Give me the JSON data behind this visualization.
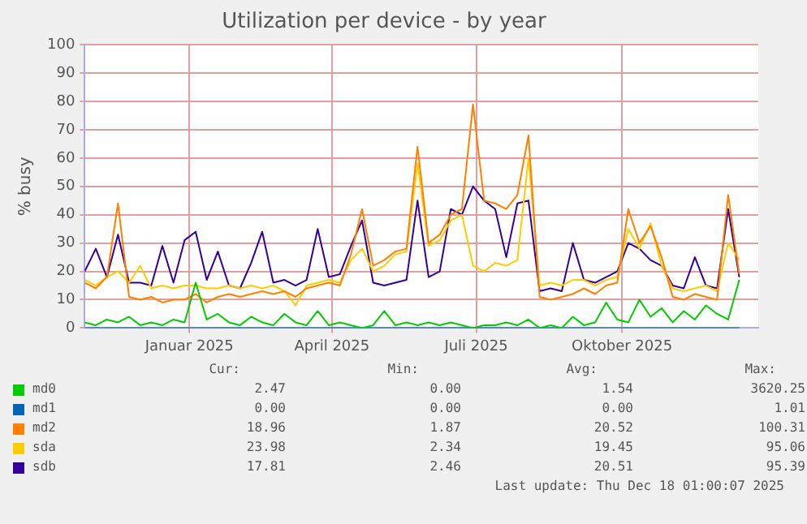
{
  "chart_data": {
    "type": "line",
    "title": "Utilization per device - by year",
    "ylabel": "% busy",
    "x": [
      "2024-10-27",
      "2024-11-03",
      "2024-11-10",
      "2024-11-17",
      "2024-11-24",
      "2024-12-01",
      "2024-12-08",
      "2024-12-15",
      "2024-12-22",
      "2024-12-29",
      "2025-01-05",
      "2025-01-12",
      "2025-01-19",
      "2025-01-26",
      "2025-02-02",
      "2025-02-09",
      "2025-02-16",
      "2025-02-23",
      "2025-03-02",
      "2025-03-09",
      "2025-03-16",
      "2025-03-23",
      "2025-03-30",
      "2025-04-06",
      "2025-04-13",
      "2025-04-20",
      "2025-04-27",
      "2025-05-04",
      "2025-05-11",
      "2025-05-18",
      "2025-05-25",
      "2025-06-01",
      "2025-06-08",
      "2025-06-15",
      "2025-06-22",
      "2025-06-29",
      "2025-07-06",
      "2025-07-13",
      "2025-07-20",
      "2025-07-27",
      "2025-08-03",
      "2025-08-10",
      "2025-08-17",
      "2025-08-24",
      "2025-08-31",
      "2025-09-07",
      "2025-09-14",
      "2025-09-21",
      "2025-09-28",
      "2025-10-05",
      "2025-10-12",
      "2025-10-19",
      "2025-10-26",
      "2025-11-02",
      "2025-11-09",
      "2025-11-16",
      "2025-11-23",
      "2025-11-30",
      "2025-12-07",
      "2025-12-14"
    ],
    "series": [
      {
        "name": "md0",
        "color": "#00cc00",
        "values": [
          2,
          1,
          3,
          2,
          4,
          1,
          2,
          1,
          3,
          2,
          16,
          3,
          5,
          2,
          1,
          4,
          2,
          1,
          5,
          2,
          1,
          6,
          1,
          2,
          1,
          0,
          1,
          6,
          1,
          2,
          1,
          2,
          1,
          2,
          1,
          0,
          1,
          1,
          2,
          1,
          3,
          0,
          1,
          0,
          4,
          1,
          2,
          9,
          3,
          2,
          10,
          4,
          7,
          2,
          6,
          3,
          8,
          5,
          3,
          17
        ]
      },
      {
        "name": "md1",
        "color": "#0066b3",
        "values": [
          0,
          0,
          0,
          0,
          0,
          0,
          0,
          0,
          0,
          0,
          0,
          0,
          0,
          0,
          0,
          0,
          0,
          0,
          0,
          0,
          0,
          0,
          0,
          0,
          0,
          0,
          0,
          0,
          0,
          0,
          0,
          0,
          0,
          0,
          0,
          0,
          0,
          0,
          0,
          0,
          0,
          0,
          0,
          0,
          0,
          0,
          0,
          0,
          0,
          0,
          0,
          0,
          0,
          0,
          0,
          0,
          0,
          0,
          0,
          0
        ]
      },
      {
        "name": "md2",
        "color": "#ff8000",
        "values": [
          16,
          14,
          18,
          44,
          11,
          10,
          11,
          9,
          10,
          10,
          12,
          9,
          11,
          12,
          11,
          12,
          13,
          12,
          13,
          11,
          14,
          15,
          16,
          15,
          26,
          42,
          22,
          24,
          27,
          28,
          64,
          30,
          33,
          40,
          42,
          79,
          45,
          44,
          42,
          47,
          68,
          11,
          10,
          11,
          12,
          14,
          12,
          15,
          16,
          42,
          30,
          36,
          25,
          11,
          10,
          12,
          11,
          10,
          47,
          19
        ]
      },
      {
        "name": "sda",
        "color": "#ffcc00",
        "values": [
          17,
          15,
          18,
          20,
          16,
          22,
          14,
          15,
          14,
          15,
          15,
          14,
          14,
          15,
          14,
          15,
          14,
          15,
          13,
          8,
          15,
          16,
          17,
          16,
          24,
          28,
          20,
          22,
          26,
          27,
          58,
          29,
          31,
          38,
          40,
          22,
          20,
          23,
          22,
          24,
          60,
          15,
          16,
          15,
          17,
          17,
          15,
          17,
          18,
          35,
          28,
          37,
          22,
          14,
          13,
          14,
          15,
          13,
          30,
          24
        ]
      },
      {
        "name": "sdb",
        "color": "#330099",
        "values": [
          20,
          28,
          18,
          33,
          16,
          16,
          15,
          29,
          16,
          31,
          34,
          17,
          27,
          15,
          14,
          23,
          34,
          16,
          17,
          15,
          17,
          35,
          18,
          19,
          29,
          38,
          16,
          15,
          16,
          17,
          45,
          18,
          20,
          42,
          40,
          50,
          45,
          42,
          25,
          44,
          45,
          13,
          14,
          13,
          30,
          17,
          16,
          18,
          20,
          30,
          28,
          24,
          22,
          15,
          14,
          25,
          15,
          14,
          42,
          18
        ]
      }
    ],
    "xlim": [
      "2024-10-27",
      "2025-12-26"
    ],
    "xticks": [
      {
        "value": "2025-01-01",
        "label": "Januar 2025"
      },
      {
        "value": "2025-04-01",
        "label": "April 2025"
      },
      {
        "value": "2025-07-01",
        "label": "Juli 2025"
      },
      {
        "value": "2025-10-01",
        "label": "Oktober 2025"
      }
    ],
    "ylim": [
      0,
      100
    ],
    "yticks": [
      0,
      10,
      20,
      30,
      40,
      50,
      60,
      70,
      80,
      90,
      100
    ],
    "grid": true,
    "legend": "bottom",
    "marker": "none",
    "line_style": "solid",
    "annotations": [
      "Cur:",
      "Min:",
      "Avg:",
      "Max:",
      "2.47",
      "0.00",
      "1.54",
      "3620.25",
      "0.00",
      "0.00",
      "0.00",
      "1.01",
      "18.96",
      "1.87",
      "20.52",
      "100.31",
      "23.98",
      "2.34",
      "19.45",
      "95.06",
      "17.81",
      "2.46",
      "20.51",
      "95.39",
      "Last update: Thu Dec 18 01:00:07 2025"
    ]
  }
}
